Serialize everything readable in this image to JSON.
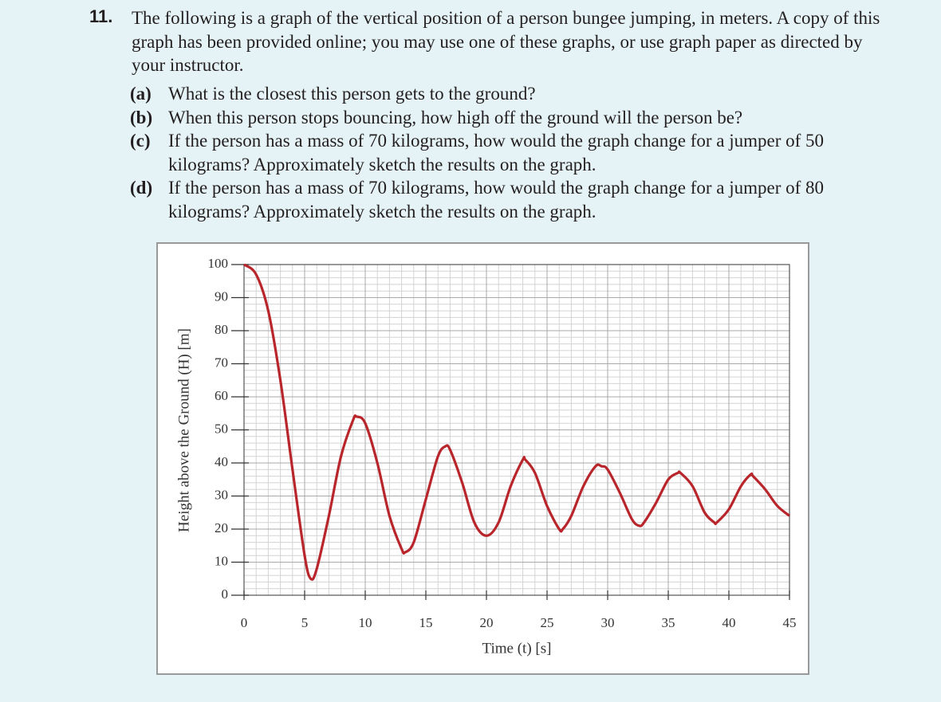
{
  "problem": {
    "number": "11.",
    "text": "The following is a graph of the vertical position of a person bungee jumping, in meters. A copy of this graph has been provided online; you may use one of these graphs, or use graph paper as directed by your instructor.",
    "parts": [
      {
        "label": "(a)",
        "text": "What is the closest this person gets to the ground?"
      },
      {
        "label": "(b)",
        "text": "When this person stops bouncing, how high off the ground will the person be?"
      },
      {
        "label": "(c)",
        "text": "If the person has a mass of 70 kilograms, how would the graph change for a jumper of 50 kilograms? Approximately sketch the results on the graph."
      },
      {
        "label": "(d)",
        "text": "If the person has a mass of 70 kilograms, how would the graph change for a jumper of 80 kilograms? Approximately sketch the results on the graph."
      }
    ]
  },
  "chart_data": {
    "type": "line",
    "x_label": "Time (t) [s]",
    "y_label": "Height above the Ground (H) [m]",
    "xlim": [
      0,
      45
    ],
    "ylim": [
      0,
      100
    ],
    "xticks": [
      0,
      5,
      10,
      15,
      20,
      25,
      30,
      35,
      40,
      45
    ],
    "yticks": [
      0,
      10,
      20,
      30,
      40,
      50,
      60,
      70,
      80,
      90,
      100
    ],
    "grid": true,
    "color": "#b8252b",
    "x": [
      0,
      1,
      2,
      3,
      4,
      5,
      5.5,
      6,
      7,
      8,
      9,
      9.3,
      10,
      11,
      12,
      13,
      13.3,
      14,
      15,
      16,
      16.6,
      17,
      18,
      19,
      20,
      21,
      22,
      23,
      23.2,
      24,
      25,
      26,
      26.3,
      27,
      28,
      29,
      29.5,
      30,
      31,
      32,
      32.6,
      33,
      34,
      35,
      35.8,
      36,
      37,
      38,
      38.8,
      39,
      40,
      41,
      41.8,
      42,
      43,
      44,
      45
    ],
    "values": [
      100,
      97,
      86,
      65,
      38,
      12,
      5,
      8,
      24,
      42,
      53,
      54,
      52,
      40,
      24,
      14,
      13,
      16,
      29,
      42,
      45,
      44,
      34,
      22,
      18,
      22,
      33,
      41,
      41,
      37,
      27,
      20,
      20,
      24,
      33,
      39,
      39,
      38,
      31,
      23,
      21,
      22,
      28,
      35,
      37,
      37,
      33,
      25,
      22,
      22,
      26,
      33,
      36.5,
      36,
      32,
      27,
      24
    ]
  }
}
